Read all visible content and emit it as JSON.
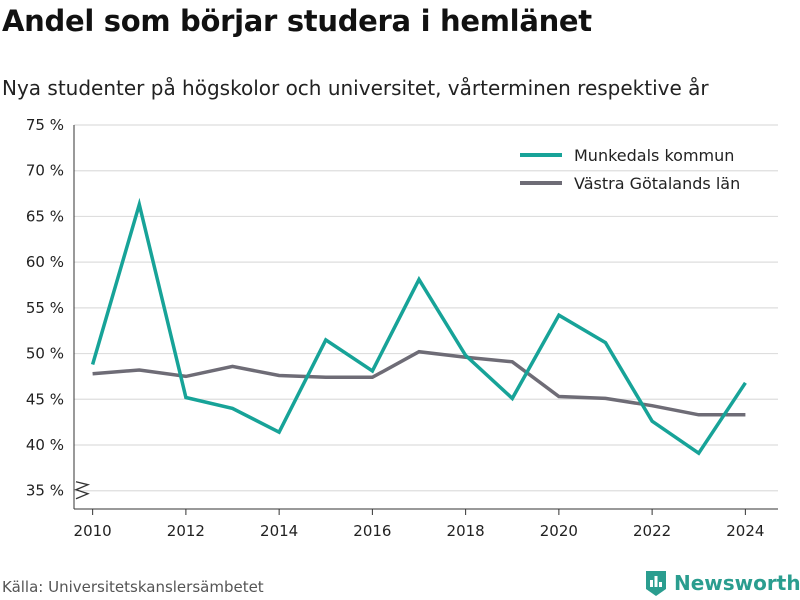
{
  "header": {
    "title": "Andel som börjar studera i hemlänet",
    "subtitle": "Nya studenter på högskolor och universitet, vårterminen respektive år"
  },
  "footer": {
    "source": "Källa: Universitetskanslersämbetet",
    "brand": "Newsworthy",
    "brand_icon": "bar-chart-logo-icon"
  },
  "colors": {
    "munkedal": "#17a398",
    "vastra_gotaland": "#6e6c76",
    "grid": "#dedede",
    "axis": "#333333",
    "brand": "#2a9d8f"
  },
  "chart_data": {
    "type": "line",
    "title": "Andel som börjar studera i hemlänet",
    "subtitle": "Nya studenter på högskolor och universitet, vårterminen respektive år",
    "x": [
      2010,
      2011,
      2012,
      2013,
      2014,
      2015,
      2016,
      2017,
      2018,
      2019,
      2020,
      2021,
      2022,
      2023,
      2024
    ],
    "series": [
      {
        "name": "Munkedals kommun",
        "color": "#17a398",
        "values": [
          48.8,
          66.3,
          45.2,
          44.0,
          41.4,
          51.5,
          48.1,
          58.1,
          49.8,
          45.1,
          54.2,
          51.2,
          42.6,
          39.1,
          46.8
        ]
      },
      {
        "name": "Västra Götalands län",
        "color": "#6e6c76",
        "values": [
          47.8,
          48.2,
          47.5,
          48.6,
          47.6,
          47.4,
          47.4,
          50.2,
          49.6,
          49.1,
          45.3,
          45.1,
          44.3,
          43.3,
          43.3
        ]
      }
    ],
    "yticks": [
      35,
      40,
      45,
      50,
      55,
      60,
      65,
      70,
      75
    ],
    "ytick_labels": [
      "35 %",
      "40 %",
      "45 %",
      "50 %",
      "55 %",
      "60 %",
      "65 %",
      "70 %",
      "75 %"
    ],
    "xticks": [
      2010,
      2012,
      2014,
      2016,
      2018,
      2020,
      2022,
      2024
    ],
    "ylim": [
      33,
      75
    ],
    "xlim": [
      2009.6,
      2024.7
    ],
    "y_axis_break": true,
    "grid": true,
    "legend_position": "top-right",
    "xlabel": "",
    "ylabel": ""
  }
}
